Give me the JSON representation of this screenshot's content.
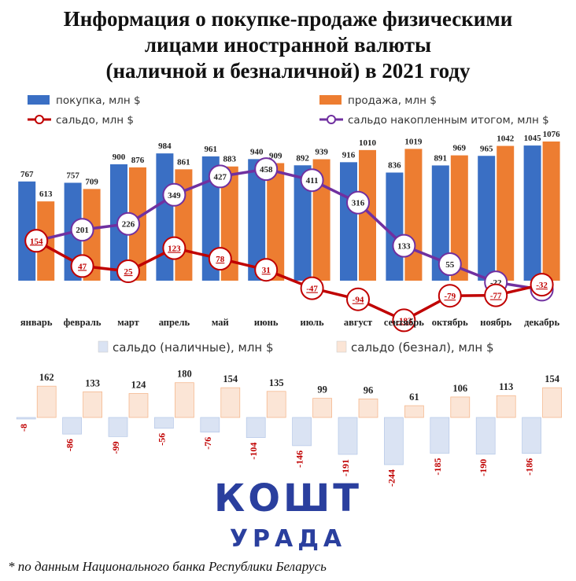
{
  "title_lines": [
    "Информация о покупке-продаже физическими",
    "лицами иностранной валюты",
    "(наличной и безналичной) в 2021 году"
  ],
  "chart_data": [
    {
      "type": "bar+line",
      "categories": [
        "январь",
        "февраль",
        "март",
        "апрель",
        "май",
        "июнь",
        "июль",
        "август",
        "сентябрь",
        "октябрь",
        "ноябрь",
        "декабрь"
      ],
      "series": [
        {
          "name": "покупка, млн $",
          "kind": "bar",
          "color": "#3a6fc4",
          "values": [
            767,
            757,
            900,
            984,
            961,
            940,
            892,
            916,
            836,
            891,
            965,
            1045
          ]
        },
        {
          "name": "продажа, млн $",
          "kind": "bar",
          "color": "#ed7d31",
          "values": [
            613,
            709,
            876,
            861,
            883,
            909,
            939,
            1010,
            1019,
            969,
            1042,
            1076
          ]
        },
        {
          "name": "сальдо, млн $",
          "kind": "line",
          "color": "#c00000",
          "values": [
            154,
            47,
            25,
            123,
            78,
            31,
            -47,
            -94,
            -183,
            -79,
            -77,
            -32
          ]
        },
        {
          "name": "сальдо накопленным итогом, млн $",
          "kind": "line",
          "color": "#7030a0",
          "values": [
            154,
            201,
            226,
            349,
            427,
            458,
            411,
            316,
            133,
            55,
            -22,
            -53
          ]
        }
      ]
    },
    {
      "type": "bar",
      "categories": [
        "январь",
        "февраль",
        "март",
        "апрель",
        "май",
        "июнь",
        "июль",
        "август",
        "сентябрь",
        "октябрь",
        "ноябрь",
        "декабрь"
      ],
      "series": [
        {
          "name": "сальдо (наличные), млн $",
          "color": "#dae3f3",
          "values": [
            -8,
            -86,
            -99,
            -56,
            -76,
            -104,
            -146,
            -191,
            -244,
            -185,
            -190,
            -186
          ]
        },
        {
          "name": "сальдо (безнал), млн $",
          "color": "#fbe5d6",
          "values": [
            162,
            133,
            124,
            180,
            154,
            135,
            99,
            96,
            61,
            106,
            113,
            154
          ]
        }
      ]
    }
  ],
  "logo": {
    "main": "КОШТ",
    "sub": "УРАДА"
  },
  "footnote": "* по данным Национального банка Республики Беларусь"
}
